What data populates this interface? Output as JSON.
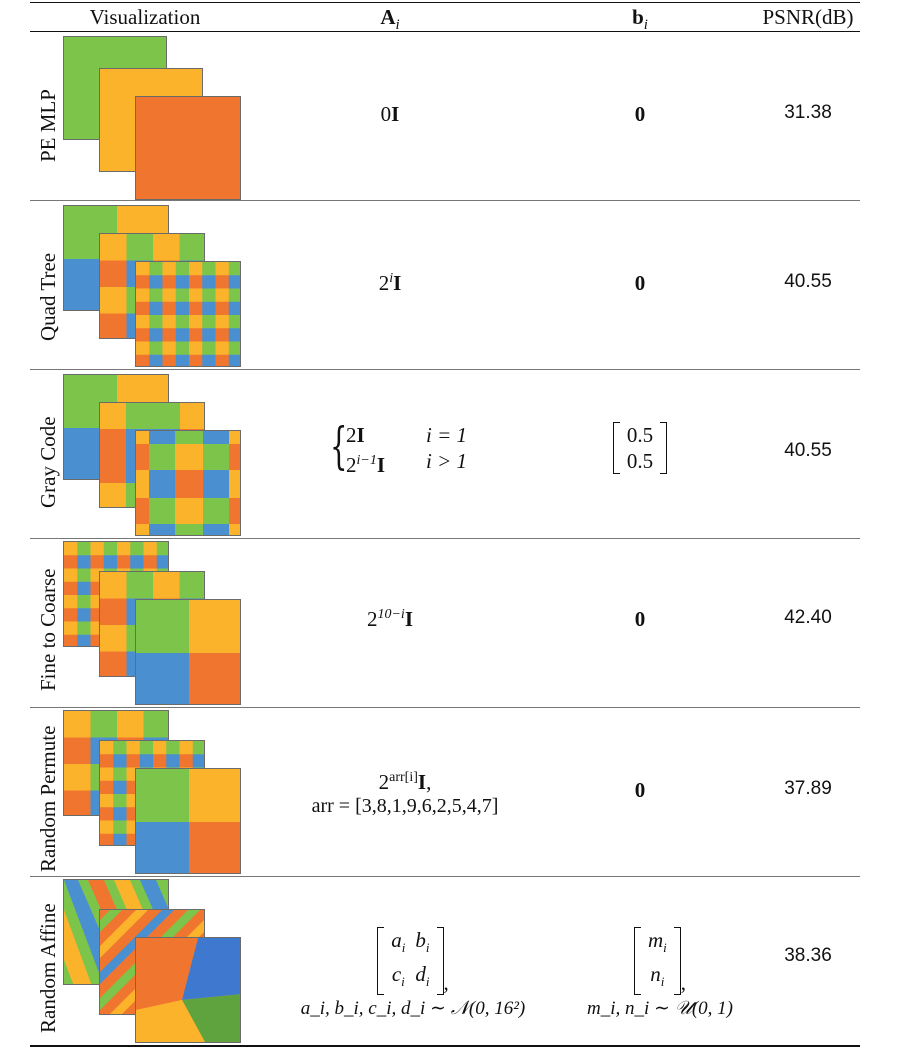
{
  "header": {
    "visualization": "Visualization",
    "a_i": "A",
    "a_i_sub": "i",
    "b_i": "b",
    "b_i_sub": "i",
    "psnr": "PSNR(dB)"
  },
  "colors": {
    "green": "#7dc44a",
    "yellow": "#fbb32b",
    "orange": "#f0752f",
    "blue": "#4a90d0",
    "rule": "#111111"
  },
  "rows": [
    {
      "label": "PE MLP",
      "a_text": "0",
      "a_bold": "I",
      "b_text": "0",
      "psnr": "31.38"
    },
    {
      "label": "Quad Tree",
      "a_base": "2",
      "a_sup": "i",
      "a_bold": "I",
      "b_text": "0",
      "psnr": "40.55"
    },
    {
      "label": "Gray Code",
      "a_case1_expr": "2",
      "a_case1_bold": "I",
      "a_case1_cond": "i = 1",
      "a_case2_base": "2",
      "a_case2_sup": "i−1",
      "a_case2_bold": "I",
      "a_case2_cond": "i > 1",
      "b_top": "0.5",
      "b_bottom": "0.5",
      "psnr": "40.55"
    },
    {
      "label": "Fine to Coarse",
      "a_base": "2",
      "a_sup": "10−i",
      "a_bold": "I",
      "b_text": "0",
      "psnr": "42.40"
    },
    {
      "label": "Random Permute",
      "a_base": "2",
      "a_sup": "arr[i]",
      "a_bold": "I",
      "a_line2": "arr = [3,8,1,9,6,2,5,4,7]",
      "b_text": "0",
      "psnr": "37.89"
    },
    {
      "label": "Random Affine",
      "a_m11": "a",
      "a_m11_sub": "i",
      "a_m12": "b",
      "a_m12_sub": "i",
      "a_m21": "c",
      "a_m21_sub": "i",
      "a_m22": "d",
      "a_m22_sub": "i",
      "a_line2": "a_i, b_i, c_i, d_i ∼ 𝒩(0, 16²)",
      "b_m1": "m",
      "b_m1_sub": "i",
      "b_m2": "n",
      "b_m2_sub": "i",
      "b_line2": "m_i, n_i ∼ 𝒰(0, 1)",
      "psnr": "38.36"
    }
  ]
}
